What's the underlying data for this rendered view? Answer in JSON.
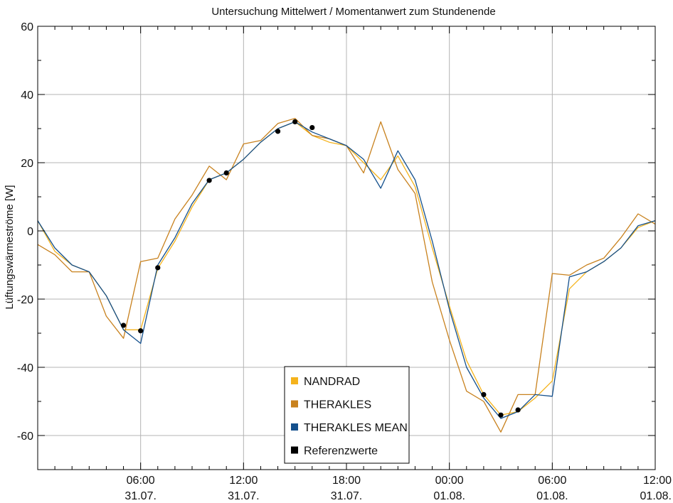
{
  "chart_data": {
    "type": "line",
    "title": "Untersuchung Mittelwert / Momentanwert zum Stundenende",
    "ylabel": "Lüftungswärmeströme [W]",
    "xlabel": "",
    "xlim": [
      0,
      36
    ],
    "ylim": [
      -70,
      60
    ],
    "grid": true,
    "legend_position": "bottom-center",
    "yticks": [
      -60,
      -40,
      -20,
      0,
      20,
      40,
      60
    ],
    "ytick_labels": [
      "-60",
      "-40",
      "-20",
      "0",
      "20",
      "40",
      "60"
    ],
    "xticks": [
      {
        "x": 6,
        "time": "06:00",
        "date": "31.07."
      },
      {
        "x": 12,
        "time": "12:00",
        "date": "31.07."
      },
      {
        "x": 18,
        "time": "18:00",
        "date": "31.07."
      },
      {
        "x": 24,
        "time": "00:00",
        "date": "01.08."
      },
      {
        "x": 30,
        "time": "06:00",
        "date": "01.08."
      },
      {
        "x": 36,
        "time": "12:00",
        "date": "01.08."
      }
    ],
    "x": [
      0,
      1,
      2,
      3,
      4,
      5,
      6,
      7,
      8,
      9,
      10,
      11,
      12,
      13,
      14,
      15,
      16,
      17,
      18,
      19,
      20,
      21,
      22,
      23,
      24,
      25,
      26,
      27,
      28,
      29,
      30,
      31,
      32,
      33,
      34,
      35,
      36
    ],
    "series": [
      {
        "name": "NANDRAD",
        "color": "#f5b31c",
        "values": [
          3,
          -6,
          -10,
          -12,
          -19,
          -29,
          -29,
          -11,
          -3,
          7,
          15,
          17,
          21,
          26,
          30,
          32,
          28,
          26,
          25,
          20,
          15,
          22,
          13,
          -5,
          -22,
          -38,
          -48,
          -54,
          -53,
          -49,
          -44,
          -17,
          -12,
          -9,
          -5,
          1,
          3
        ]
      },
      {
        "name": "THERAKLES",
        "color": "#c8811d",
        "values": [
          -4,
          -7,
          -12,
          -12,
          -25,
          -31.5,
          -9,
          -8,
          3.5,
          10.5,
          19,
          15,
          25.5,
          26.5,
          31.5,
          33,
          28,
          27,
          25,
          17,
          32,
          18,
          11,
          -15,
          -32,
          -47,
          -50,
          -59,
          -48,
          -48,
          -12.5,
          -13,
          -10,
          -8,
          -2,
          5,
          2
        ]
      },
      {
        "name": "THERAKLES MEAN",
        "color": "#14508c",
        "values": [
          3,
          -5,
          -10,
          -12,
          -19,
          -29,
          -33,
          -10,
          -2,
          8,
          15,
          17,
          21,
          26,
          30,
          32,
          29,
          27,
          25,
          21,
          12.5,
          23.5,
          15,
          -3,
          -23,
          -40,
          -49,
          -55,
          -53,
          -48,
          -48.5,
          -13.5,
          -12,
          -9,
          -5,
          1.5,
          3
        ]
      }
    ],
    "reference_points": {
      "name": "Referenzwerte",
      "color": "#000000",
      "x": [
        5,
        6,
        7,
        10,
        11,
        14,
        15,
        16,
        26,
        27,
        28
      ],
      "y": [
        -27.7,
        -29.3,
        -10.8,
        14.8,
        17,
        29.2,
        32,
        30.3,
        -48,
        -54,
        -52.5
      ]
    }
  }
}
